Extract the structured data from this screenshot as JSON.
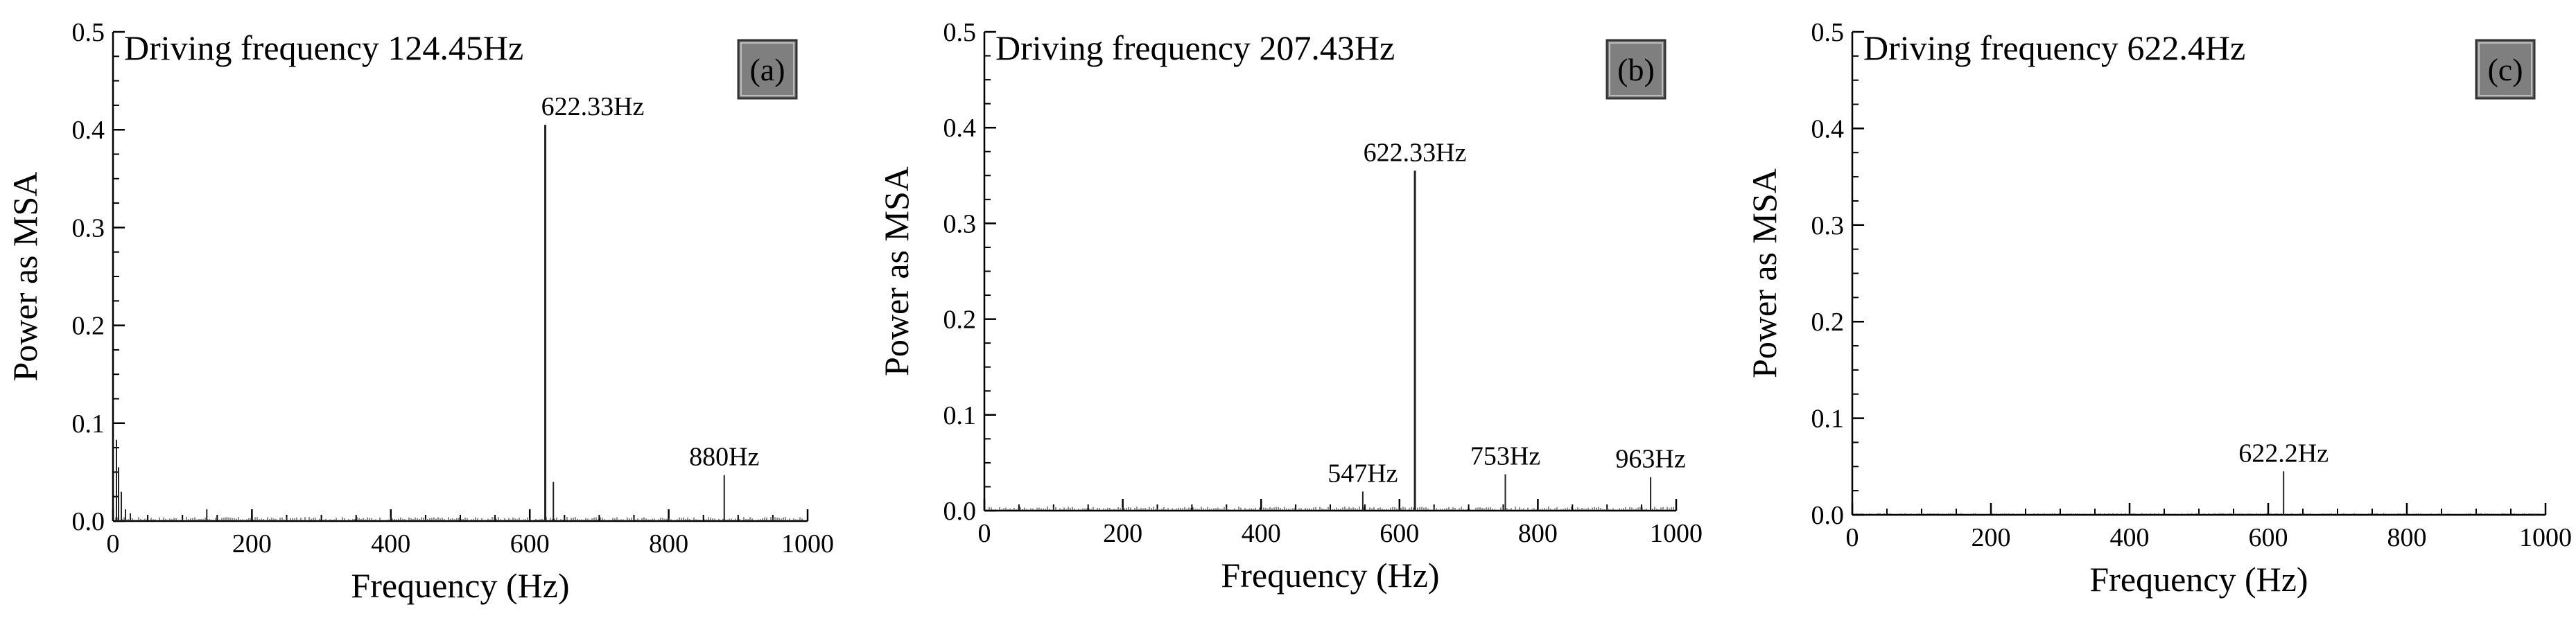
{
  "chart_data": [
    {
      "type": "line",
      "title": "Driving frequency 124.45Hz",
      "panel_label": "(a)",
      "xlabel": "Frequency (Hz)",
      "ylabel": "Power as MSA",
      "xlim": [
        0,
        1000
      ],
      "ylim": [
        0,
        0.5
      ],
      "x_ticks": [
        0,
        200,
        400,
        600,
        800,
        1000
      ],
      "y_ticks": [
        0.0,
        0.1,
        0.2,
        0.3,
        0.4,
        0.5
      ],
      "x_tick_labels": [
        "0",
        "200",
        "400",
        "600",
        "800",
        "1000"
      ],
      "y_tick_labels": [
        "0.0",
        "0.1",
        "0.2",
        "0.3",
        "0.4",
        "0.5"
      ],
      "grid": false,
      "peaks": [
        {
          "x": 5,
          "y": 0.083
        },
        {
          "x": 8,
          "y": 0.055
        },
        {
          "x": 12,
          "y": 0.03
        },
        {
          "x": 18,
          "y": 0.012
        },
        {
          "x": 25,
          "y": 0.008
        },
        {
          "x": 135,
          "y": 0.012
        },
        {
          "x": 622.33,
          "y": 0.405
        },
        {
          "x": 634,
          "y": 0.04
        },
        {
          "x": 880,
          "y": 0.047
        }
      ],
      "annotations": [
        {
          "text": "622.33Hz",
          "x": 622.33,
          "y": 0.405
        },
        {
          "text": "880Hz",
          "x": 880,
          "y": 0.047
        }
      ]
    },
    {
      "type": "line",
      "title": "Driving frequency 207.43Hz",
      "panel_label": "(b)",
      "xlabel": "Frequency (Hz)",
      "ylabel": "Power as MSA",
      "xlim": [
        0,
        1000
      ],
      "ylim": [
        0,
        0.5
      ],
      "x_ticks": [
        0,
        200,
        400,
        600,
        800,
        1000
      ],
      "y_ticks": [
        0.0,
        0.1,
        0.2,
        0.3,
        0.4,
        0.5
      ],
      "x_tick_labels": [
        "0",
        "200",
        "400",
        "600",
        "800",
        "1000"
      ],
      "y_tick_labels": [
        "0.0",
        "0.1",
        "0.2",
        "0.3",
        "0.4",
        "0.5"
      ],
      "grid": false,
      "peaks": [
        {
          "x": 547,
          "y": 0.02
        },
        {
          "x": 622.33,
          "y": 0.355
        },
        {
          "x": 753,
          "y": 0.038
        },
        {
          "x": 963,
          "y": 0.035
        }
      ],
      "annotations": [
        {
          "text": "547Hz",
          "x": 547,
          "y": 0.02
        },
        {
          "text": "622.33Hz",
          "x": 622.33,
          "y": 0.355
        },
        {
          "text": "753Hz",
          "x": 753,
          "y": 0.038
        },
        {
          "text": "963Hz",
          "x": 963,
          "y": 0.035
        }
      ]
    },
    {
      "type": "line",
      "title": "Driving frequency 622.4Hz",
      "panel_label": "(c)",
      "xlabel": "Frequency (Hz)",
      "ylabel": "Power as MSA",
      "xlim": [
        0,
        1000
      ],
      "ylim": [
        0,
        0.5
      ],
      "x_ticks": [
        0,
        200,
        400,
        600,
        800,
        1000
      ],
      "y_ticks": [
        0.0,
        0.1,
        0.2,
        0.3,
        0.4,
        0.5
      ],
      "x_tick_labels": [
        "0",
        "200",
        "400",
        "600",
        "800",
        "1000"
      ],
      "y_tick_labels": [
        "0.0",
        "0.1",
        "0.2",
        "0.3",
        "0.4",
        "0.5"
      ],
      "grid": false,
      "peaks": [
        {
          "x": 622.2,
          "y": 0.045
        }
      ],
      "annotations": [
        {
          "text": "622.2Hz",
          "x": 622.2,
          "y": 0.045
        }
      ]
    }
  ]
}
